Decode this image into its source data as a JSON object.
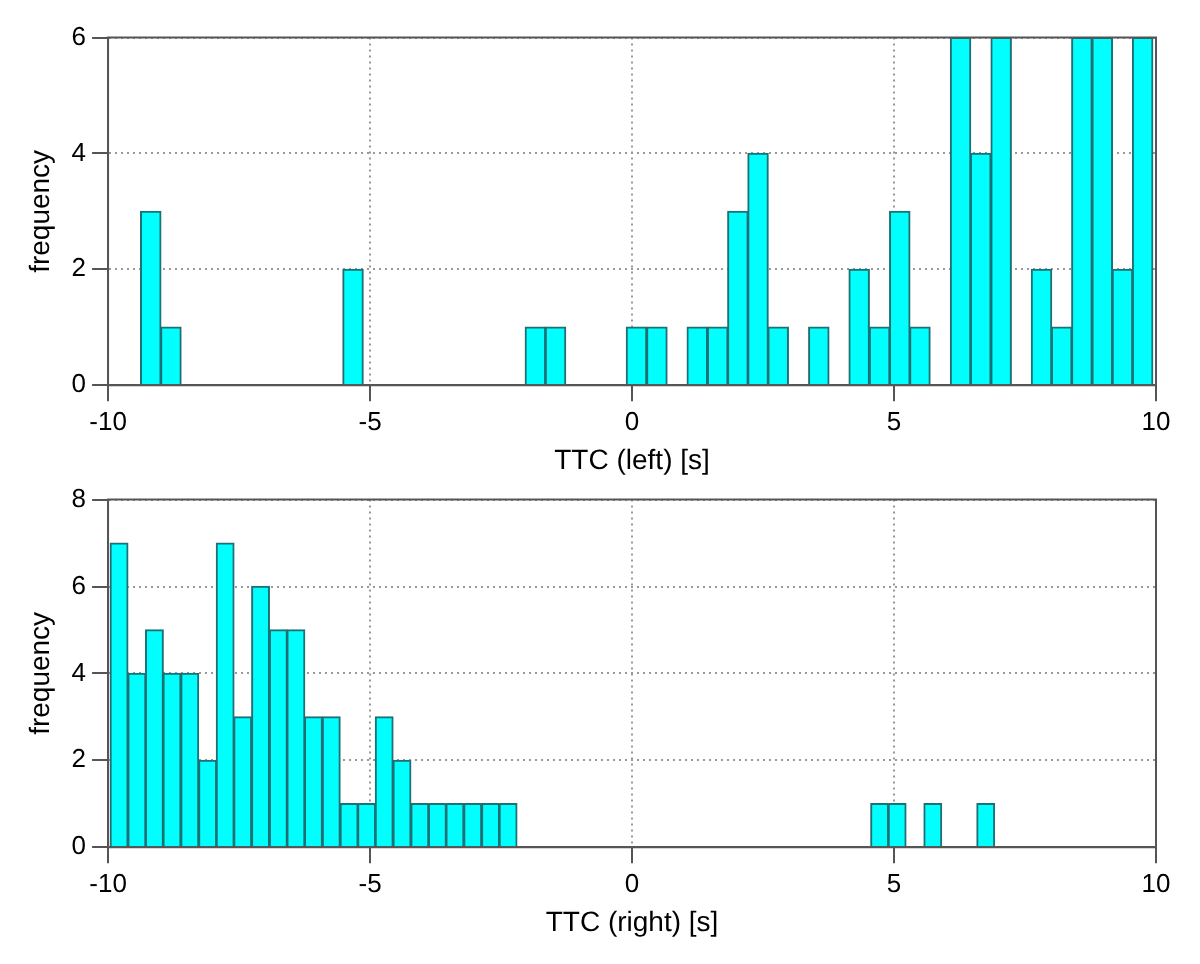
{
  "chart_data": [
    {
      "type": "histogram",
      "xlabel": "TTC (left) [s]",
      "ylabel": "frequency",
      "color": "#00ffff",
      "grid": true,
      "xlim": [
        -10,
        10
      ],
      "xticks": [
        -10,
        -5,
        0,
        5,
        10
      ],
      "ylim": [
        0,
        6
      ],
      "yticks": [
        0,
        2,
        4,
        6
      ],
      "bins": [
        -9.38,
        -8.99,
        -8.61,
        -8.22,
        -7.84,
        -7.45,
        -7.06,
        -6.68,
        -6.29,
        -5.9,
        -5.52,
        -5.13,
        -4.74,
        -4.36,
        -3.97,
        -3.58,
        -3.2,
        -2.81,
        -2.42,
        -2.04,
        -1.65,
        -1.27,
        -0.88,
        -0.49,
        -0.11,
        0.28,
        0.67,
        1.05,
        1.44,
        1.83,
        2.21,
        2.6,
        2.98,
        3.37,
        3.76,
        4.14,
        4.53,
        4.92,
        5.3,
        5.69,
        6.08,
        6.46,
        6.85,
        7.24,
        7.62,
        8.01,
        8.39,
        8.78,
        9.17,
        9.55,
        9.94
      ],
      "values": [
        3,
        1,
        0,
        0,
        0,
        0,
        0,
        0,
        0,
        0,
        2,
        0,
        0,
        0,
        0,
        0,
        0,
        0,
        0,
        1,
        1,
        0,
        0,
        0,
        1,
        1,
        0,
        1,
        1,
        3,
        4,
        1,
        0,
        1,
        0,
        2,
        1,
        3,
        1,
        0,
        6,
        4,
        6,
        0,
        2,
        1,
        6,
        6,
        2,
        6
      ]
    },
    {
      "type": "histogram",
      "xlabel": "TTC (right) [s]",
      "ylabel": "frequency",
      "color": "#00ffff",
      "grid": true,
      "xlim": [
        -10,
        10
      ],
      "xticks": [
        -10,
        -5,
        0,
        5,
        10
      ],
      "ylim": [
        0,
        8
      ],
      "yticks": [
        0,
        2,
        4,
        6,
        8
      ],
      "bins": [
        -9.96,
        -9.62,
        -9.28,
        -8.95,
        -8.61,
        -8.27,
        -7.93,
        -7.6,
        -7.26,
        -6.92,
        -6.58,
        -6.25,
        -5.91,
        -5.57,
        -5.23,
        -4.9,
        -4.56,
        -4.22,
        -3.88,
        -3.55,
        -3.21,
        -2.87,
        -2.53,
        -2.2,
        -1.86,
        -1.52,
        -1.18,
        -0.85,
        -0.51,
        -0.17,
        0.17,
        0.51,
        0.84,
        1.18,
        1.52,
        1.86,
        2.19,
        2.53,
        2.87,
        3.21,
        3.54,
        3.88,
        4.22,
        4.56,
        4.89,
        5.23,
        5.57,
        5.91,
        6.24,
        6.58,
        6.92
      ],
      "values": [
        7,
        4,
        5,
        4,
        4,
        2,
        7,
        3,
        6,
        5,
        5,
        3,
        3,
        1,
        1,
        3,
        2,
        1,
        1,
        1,
        1,
        1,
        1,
        0,
        0,
        0,
        0,
        0,
        0,
        0,
        0,
        0,
        0,
        0,
        0,
        0,
        0,
        0,
        0,
        0,
        0,
        0,
        0,
        1,
        1,
        0,
        1,
        0,
        0,
        1
      ]
    }
  ]
}
